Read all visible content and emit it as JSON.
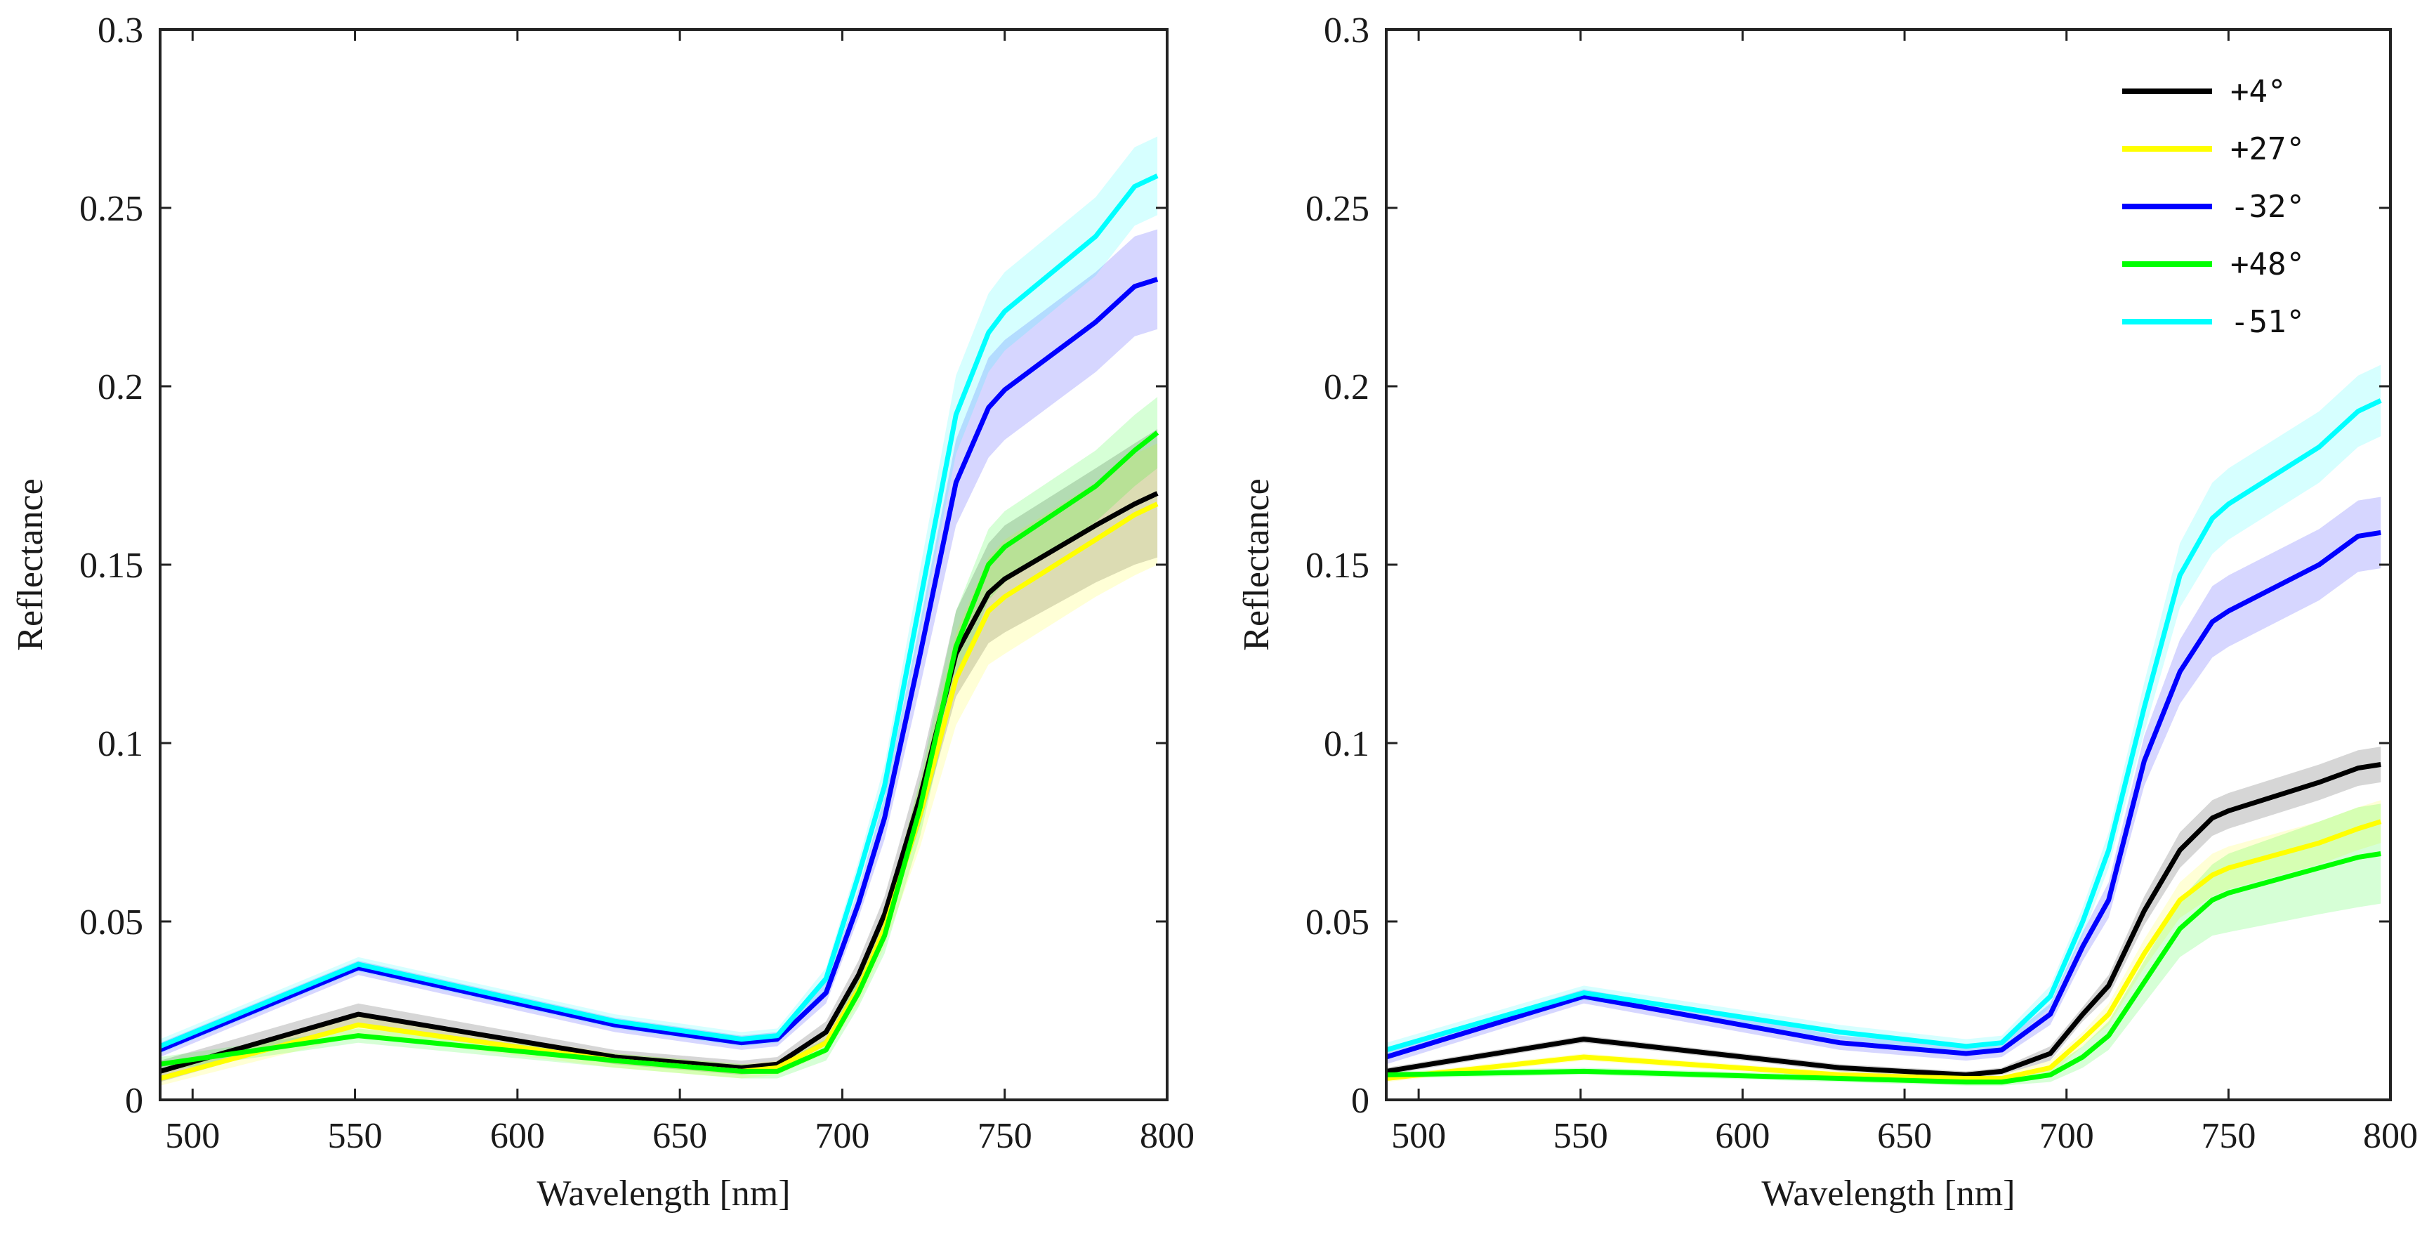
{
  "chart_data": [
    {
      "type": "line",
      "title": "",
      "xlabel": "Wavelength [nm]",
      "ylabel": "Reflectance",
      "xlim": [
        490,
        800
      ],
      "ylim": [
        0,
        0.3
      ],
      "xticks": [
        500,
        550,
        600,
        650,
        700,
        750,
        800
      ],
      "xtick_labels": [
        "500",
        "550",
        "600",
        "650",
        "700",
        "750",
        "800"
      ],
      "yticks": [
        0,
        0.05,
        0.1,
        0.15,
        0.2,
        0.25,
        0.3
      ],
      "ytick_labels": [
        "0",
        "0.05",
        "0.1",
        "0.15",
        "0.2",
        "0.25",
        "0.3"
      ],
      "grid": false,
      "x": [
        490,
        551,
        630,
        669,
        680,
        695,
        705,
        713,
        724,
        735,
        745,
        750,
        778,
        790,
        797
      ],
      "series": [
        {
          "name": "+4°",
          "color": "#000000",
          "values": [
            0.008,
            0.024,
            0.012,
            0.009,
            0.01,
            0.019,
            0.035,
            0.052,
            0.085,
            0.125,
            0.142,
            0.146,
            0.161,
            0.167,
            0.17
          ],
          "band": [
            0.003,
            0.003,
            0.002,
            0.002,
            0.002,
            0.003,
            0.004,
            0.005,
            0.008,
            0.012,
            0.014,
            0.015,
            0.016,
            0.017,
            0.018
          ]
        },
        {
          "name": "+27°",
          "color": "#ffff00",
          "values": [
            0.006,
            0.021,
            0.011,
            0.008,
            0.009,
            0.016,
            0.031,
            0.048,
            0.08,
            0.118,
            0.137,
            0.141,
            0.157,
            0.164,
            0.167
          ],
          "band": [
            0.002,
            0.003,
            0.002,
            0.002,
            0.002,
            0.003,
            0.004,
            0.005,
            0.009,
            0.013,
            0.015,
            0.016,
            0.016,
            0.017,
            0.017
          ]
        },
        {
          "name": "-32°",
          "color": "#0000ff",
          "values": [
            0.014,
            0.037,
            0.021,
            0.016,
            0.017,
            0.03,
            0.055,
            0.079,
            0.125,
            0.173,
            0.194,
            0.199,
            0.218,
            0.228,
            0.23
          ],
          "band": [
            0.002,
            0.002,
            0.002,
            0.002,
            0.002,
            0.003,
            0.004,
            0.006,
            0.009,
            0.012,
            0.014,
            0.014,
            0.014,
            0.014,
            0.014
          ]
        },
        {
          "name": "+48°",
          "color": "#00ff00",
          "values": [
            0.01,
            0.018,
            0.011,
            0.008,
            0.008,
            0.014,
            0.03,
            0.046,
            0.082,
            0.127,
            0.15,
            0.155,
            0.172,
            0.182,
            0.187
          ],
          "band": [
            0.002,
            0.002,
            0.002,
            0.002,
            0.002,
            0.003,
            0.004,
            0.005,
            0.008,
            0.01,
            0.01,
            0.01,
            0.01,
            0.01,
            0.01
          ]
        },
        {
          "name": "-51°",
          "color": "#00ffff",
          "values": [
            0.015,
            0.038,
            0.022,
            0.017,
            0.018,
            0.034,
            0.063,
            0.088,
            0.14,
            0.192,
            0.215,
            0.221,
            0.242,
            0.256,
            0.259
          ],
          "band": [
            0.002,
            0.002,
            0.002,
            0.002,
            0.002,
            0.003,
            0.004,
            0.006,
            0.009,
            0.011,
            0.011,
            0.011,
            0.011,
            0.011,
            0.011
          ]
        }
      ]
    },
    {
      "type": "line",
      "title": "",
      "xlabel": "Wavelength [nm]",
      "ylabel": "Reflectance",
      "xlim": [
        490,
        800
      ],
      "ylim": [
        0,
        0.3
      ],
      "xticks": [
        500,
        550,
        600,
        650,
        700,
        750,
        800
      ],
      "xtick_labels": [
        "500",
        "550",
        "600",
        "650",
        "700",
        "750",
        "800"
      ],
      "yticks": [
        0,
        0.05,
        0.1,
        0.15,
        0.2,
        0.25,
        0.3
      ],
      "ytick_labels": [
        "0",
        "0.05",
        "0.1",
        "0.15",
        "0.2",
        "0.25",
        "0.3"
      ],
      "grid": false,
      "legend": {
        "position": "top-right",
        "entries": [
          "+4°",
          "+27°",
          "-32°",
          "+48°",
          "-51°"
        ]
      },
      "x": [
        490,
        551,
        630,
        669,
        680,
        695,
        705,
        713,
        724,
        735,
        745,
        750,
        778,
        790,
        797
      ],
      "series": [
        {
          "name": "+4°",
          "color": "#000000",
          "values": [
            0.008,
            0.017,
            0.009,
            0.007,
            0.008,
            0.013,
            0.024,
            0.032,
            0.053,
            0.07,
            0.079,
            0.081,
            0.089,
            0.093,
            0.094
          ],
          "band": [
            0.001,
            0.001,
            0.001,
            0.001,
            0.001,
            0.002,
            0.002,
            0.003,
            0.004,
            0.005,
            0.005,
            0.005,
            0.005,
            0.005,
            0.005
          ]
        },
        {
          "name": "+27°",
          "color": "#ffff00",
          "values": [
            0.006,
            0.012,
            0.007,
            0.006,
            0.006,
            0.009,
            0.017,
            0.024,
            0.041,
            0.056,
            0.063,
            0.065,
            0.072,
            0.076,
            0.078
          ],
          "band": [
            0.001,
            0.001,
            0.001,
            0.001,
            0.001,
            0.002,
            0.002,
            0.003,
            0.004,
            0.005,
            0.006,
            0.006,
            0.006,
            0.006,
            0.006
          ]
        },
        {
          "name": "-32°",
          "color": "#0000ff",
          "values": [
            0.012,
            0.029,
            0.016,
            0.013,
            0.014,
            0.024,
            0.043,
            0.056,
            0.095,
            0.12,
            0.134,
            0.137,
            0.15,
            0.158,
            0.159
          ],
          "band": [
            0.002,
            0.002,
            0.002,
            0.002,
            0.002,
            0.003,
            0.004,
            0.005,
            0.007,
            0.009,
            0.01,
            0.01,
            0.01,
            0.01,
            0.01
          ]
        },
        {
          "name": "+48°",
          "color": "#00ff00",
          "values": [
            0.007,
            0.008,
            0.006,
            0.005,
            0.005,
            0.007,
            0.012,
            0.018,
            0.033,
            0.048,
            0.056,
            0.058,
            0.065,
            0.068,
            0.069
          ],
          "band": [
            0.001,
            0.001,
            0.001,
            0.001,
            0.001,
            0.002,
            0.003,
            0.004,
            0.006,
            0.008,
            0.01,
            0.011,
            0.013,
            0.014,
            0.014
          ]
        },
        {
          "name": "-51°",
          "color": "#00ffff",
          "values": [
            0.014,
            0.03,
            0.019,
            0.015,
            0.016,
            0.029,
            0.05,
            0.07,
            0.11,
            0.147,
            0.163,
            0.167,
            0.183,
            0.193,
            0.196
          ],
          "band": [
            0.002,
            0.002,
            0.002,
            0.002,
            0.002,
            0.003,
            0.004,
            0.005,
            0.007,
            0.009,
            0.01,
            0.01,
            0.01,
            0.01,
            0.01
          ]
        }
      ]
    }
  ]
}
